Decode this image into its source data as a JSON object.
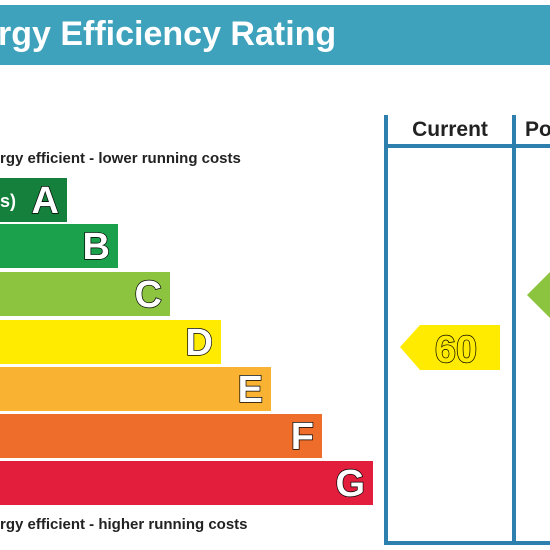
{
  "header": {
    "title": "rgy Efficiency Rating"
  },
  "columns": [
    "Current",
    "Po"
  ],
  "top_note": "rgy efficient - lower running costs",
  "bottom_note": "rgy efficient - higher running costs",
  "bands": [
    {
      "prefix": "s)",
      "letter": "A"
    },
    {
      "letter": "B"
    },
    {
      "letter": "C"
    },
    {
      "letter": "D"
    },
    {
      "letter": "E"
    },
    {
      "letter": "F"
    },
    {
      "letter": "G"
    }
  ],
  "current": {
    "value": "60"
  }
}
